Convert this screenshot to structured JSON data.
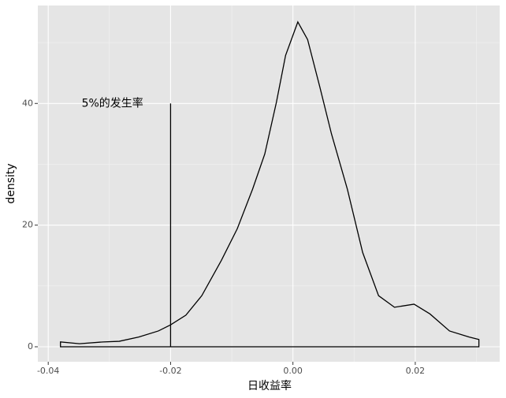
{
  "chart_data": {
    "type": "density",
    "x_label": "日收益率",
    "y_label": "density",
    "x": [
      -0.038,
      -0.0349,
      -0.031,
      -0.0284,
      -0.0252,
      -0.022,
      -0.02,
      -0.0175,
      -0.0149,
      -0.0117,
      -0.0091,
      -0.0066,
      -0.0046,
      -0.0027,
      -0.0012,
      0.0008,
      0.0024,
      0.0044,
      0.0063,
      0.0089,
      0.0114,
      0.014,
      0.0166,
      0.0198,
      0.0224,
      0.0256,
      0.0288,
      0.0304
    ],
    "values": [
      0.8,
      0.5,
      0.8,
      0.9,
      1.6,
      2.6,
      3.6,
      5.2,
      8.4,
      14.2,
      19.4,
      25.9,
      31.7,
      40.2,
      47.9,
      53.4,
      50.5,
      42.7,
      35,
      25.9,
      15.5,
      8.4,
      6.5,
      7,
      5.4,
      2.6,
      1.6,
      1.2
    ],
    "color": "#000000",
    "xlim": [
      -0.0417,
      0.0338
    ],
    "ylim": [
      -2.46,
      56.1
    ],
    "xticks": [
      {
        "value": -0.04,
        "label": "-0.04"
      },
      {
        "value": -0.02,
        "label": "-0.02"
      },
      {
        "value": 0,
        "label": "0.00"
      },
      {
        "value": 0.02,
        "label": "0.02"
      }
    ],
    "yticks": [
      0,
      20,
      40
    ],
    "minor_xticks": [
      -0.03,
      -0.01,
      0.01,
      0.03
    ],
    "minor_yticks": [
      10,
      30,
      50
    ],
    "grid": true,
    "annotations": [
      {
        "text": "5%的发生率",
        "x": -0.0295,
        "y": 40
      }
    ],
    "segments": [
      {
        "x": -0.02,
        "y": [
          0,
          40
        ]
      }
    ]
  }
}
